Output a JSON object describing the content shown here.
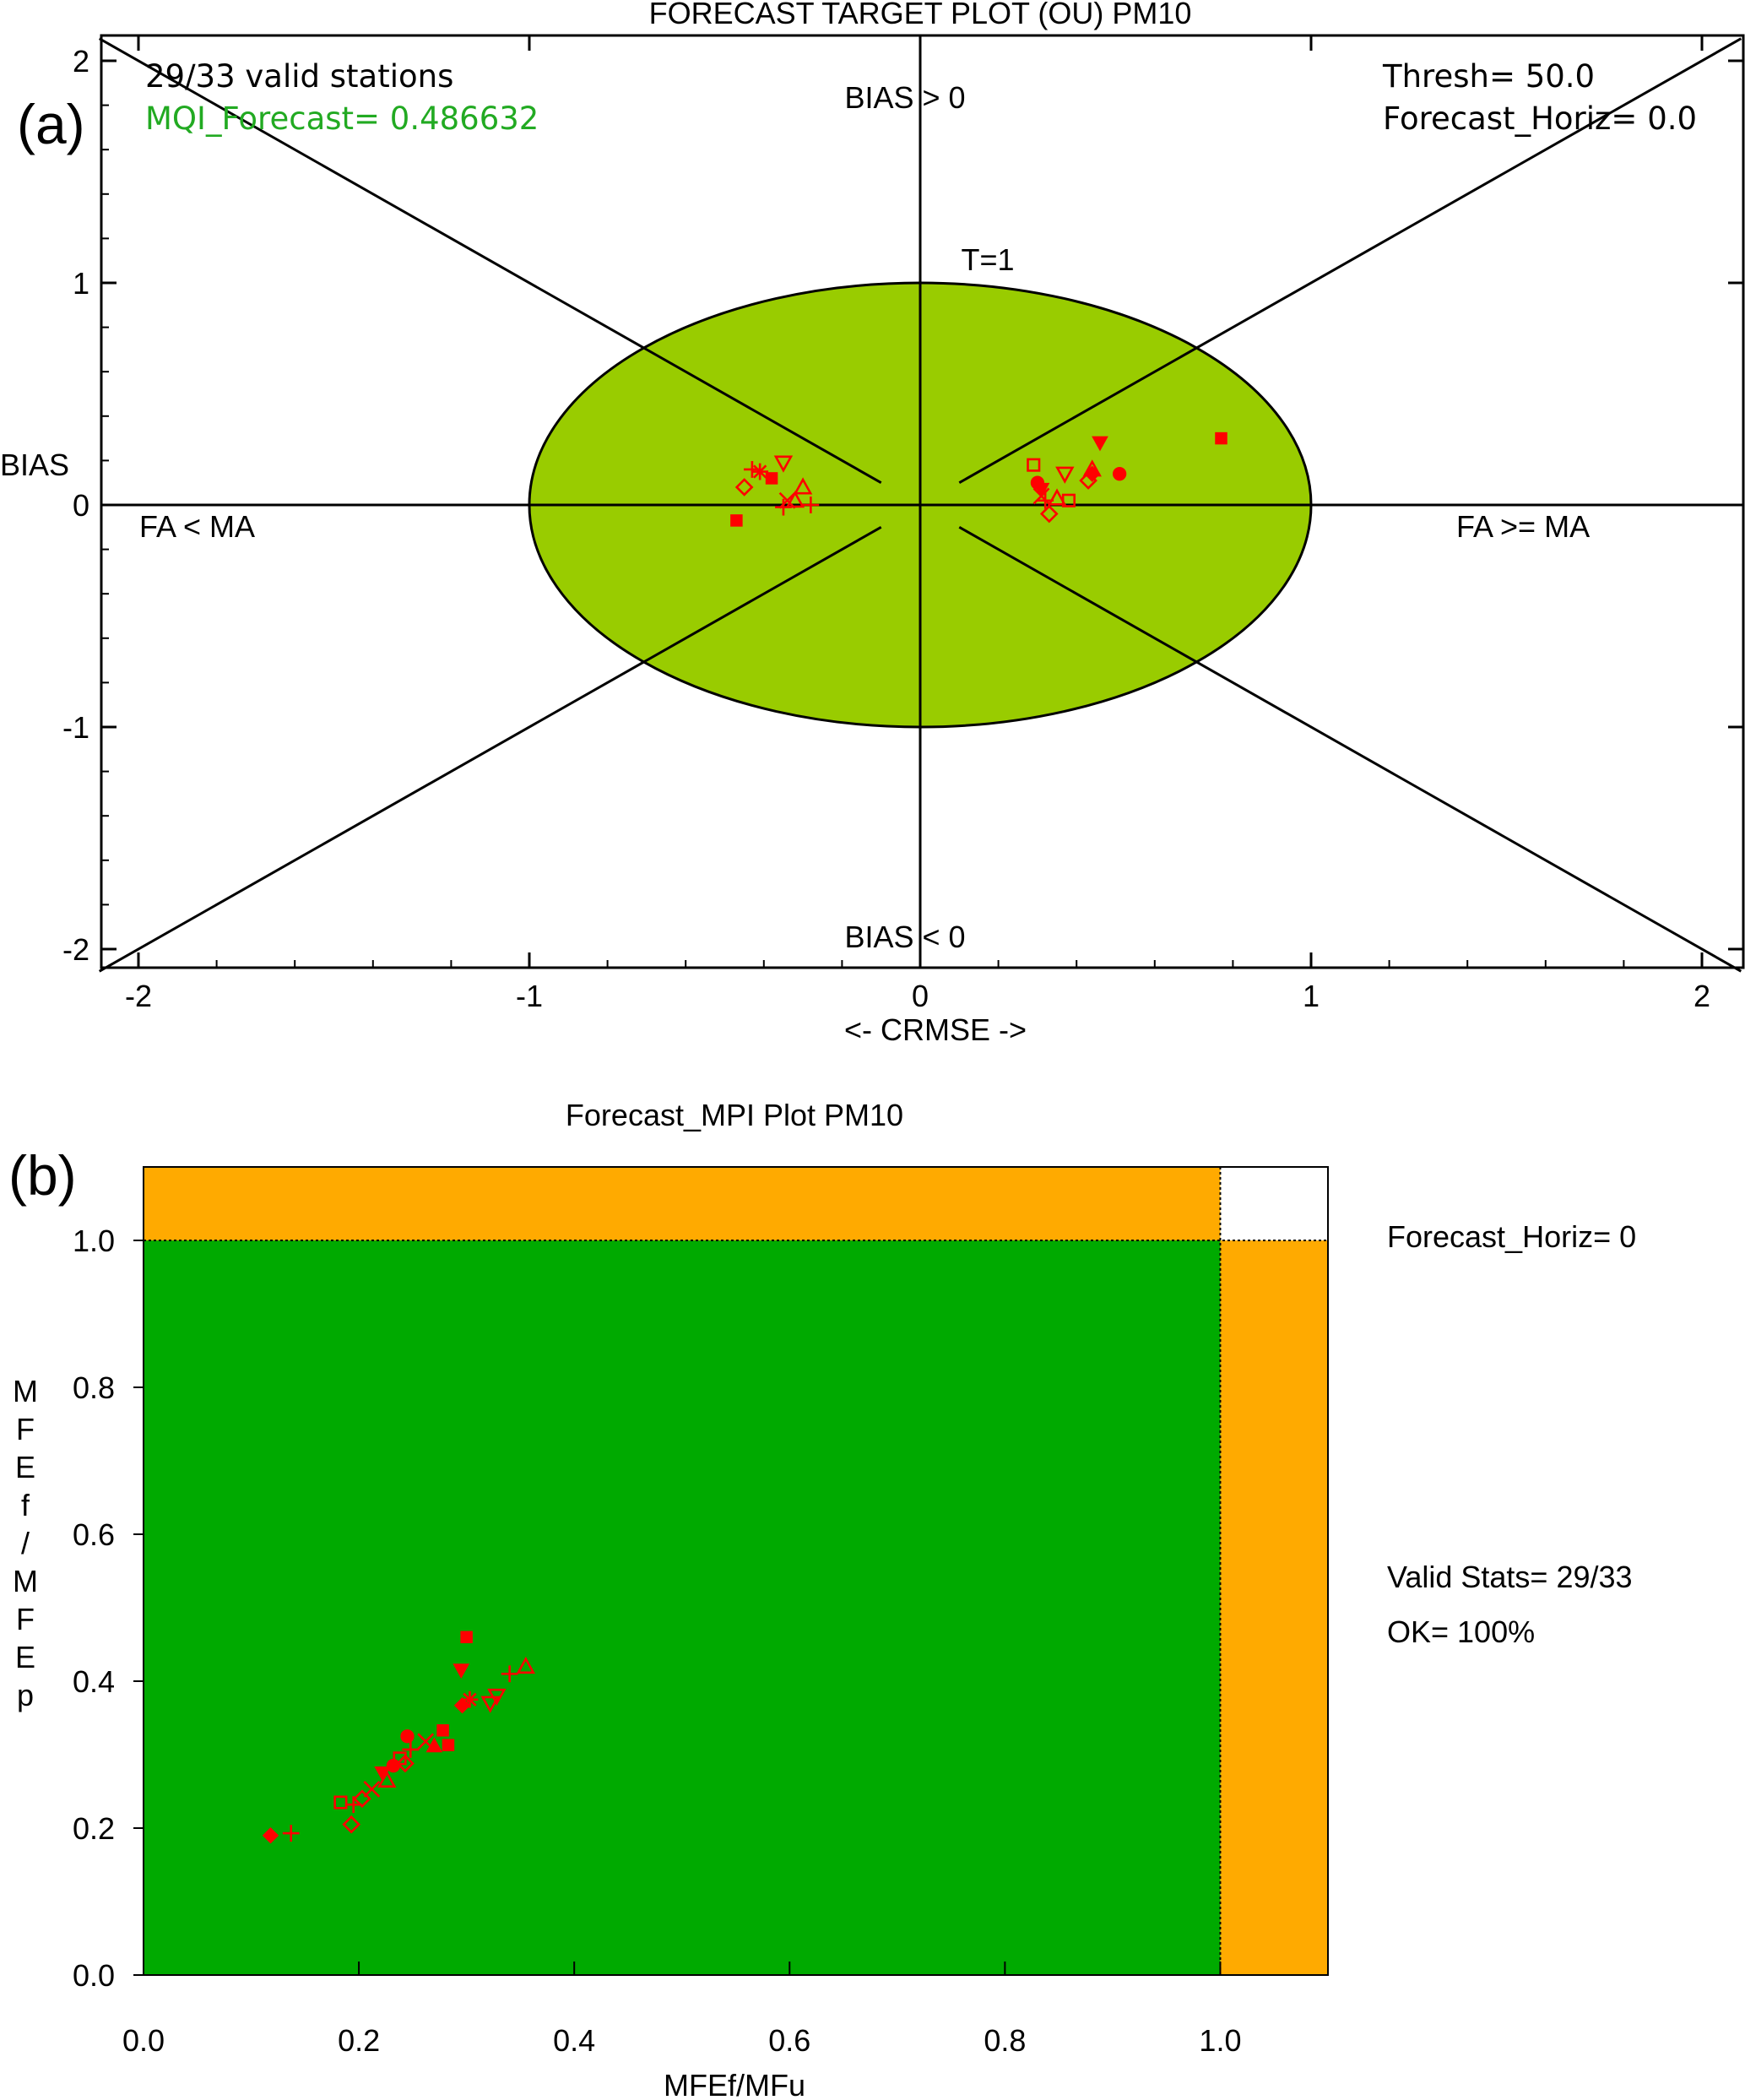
{
  "panel_labels": {
    "a": "(a)",
    "b": "(b)"
  },
  "colors": {
    "marker": "#ff0000",
    "ellipse_fill": "#99cc00",
    "mpi_green": "#00aa00",
    "mpi_orange": "#ffaa00",
    "mqi_text": "#22aa22",
    "axis": "#000000"
  },
  "chart_data": [
    {
      "type": "scatter",
      "title": "FORECAST TARGET PLOT (OU)    PM10",
      "xlabel": "<- CRMSE ->",
      "ylabel": "BIAS",
      "xlim": [
        -2.1,
        2.1
      ],
      "ylim": [
        -2.1,
        2.1
      ],
      "xticks": [
        -2,
        -1,
        0,
        1,
        2
      ],
      "yticks": [
        -2,
        -1,
        0,
        1,
        2
      ],
      "xtick_labels": [
        "-2",
        "-1",
        "0",
        "1",
        "2"
      ],
      "ytick_labels": [
        "-2",
        "-1",
        "0",
        "1",
        "2"
      ],
      "ellipse": {
        "rx": 1,
        "ry": 1
      },
      "annotations": {
        "stations": "29/33 valid stations",
        "mqi": "MQI_Forecast=  0.486632",
        "thresh": "Thresh=  50.0",
        "horiz": "Forecast_Horiz=  0.0",
        "bias_pos": "BIAS > 0",
        "bias_neg": "BIAS < 0",
        "t1": "T=1",
        "fa_lt": "FA < MA",
        "fa_ge": "FA >= MA"
      },
      "points": [
        {
          "x": 0.77,
          "y": 0.3,
          "m": "sq_f"
        },
        {
          "x": 0.46,
          "y": 0.28,
          "m": "tri_dn_f"
        },
        {
          "x": 0.51,
          "y": 0.14,
          "m": "circ_f"
        },
        {
          "x": 0.44,
          "y": 0.14,
          "m": "diamond_f"
        },
        {
          "x": 0.3,
          "y": 0.1,
          "m": "circ_f"
        },
        {
          "x": 0.29,
          "y": 0.18,
          "m": "sq_o"
        },
        {
          "x": 0.37,
          "y": 0.14,
          "m": "tri_dn_o"
        },
        {
          "x": 0.44,
          "y": 0.16,
          "m": "tri_o"
        },
        {
          "x": 0.43,
          "y": 0.11,
          "m": "diamond_o"
        },
        {
          "x": 0.31,
          "y": 0.04,
          "m": "x"
        },
        {
          "x": 0.32,
          "y": 0.02,
          "m": "plus"
        },
        {
          "x": 0.35,
          "y": 0.03,
          "m": "tri_o"
        },
        {
          "x": 0.38,
          "y": 0.02,
          "m": "sq_o"
        },
        {
          "x": 0.33,
          "y": -0.04,
          "m": "diamond_o"
        },
        {
          "x": 0.31,
          "y": 0.07,
          "m": "tri_dn_f"
        },
        {
          "x": -0.38,
          "y": 0.12,
          "m": "sq_f"
        },
        {
          "x": -0.43,
          "y": 0.16,
          "m": "plus"
        },
        {
          "x": -0.41,
          "y": 0.15,
          "m": "star"
        },
        {
          "x": -0.35,
          "y": 0.19,
          "m": "tri_dn_o"
        },
        {
          "x": -0.45,
          "y": 0.08,
          "m": "diamond_o"
        },
        {
          "x": -0.3,
          "y": 0.08,
          "m": "tri_o"
        },
        {
          "x": -0.34,
          "y": 0.02,
          "m": "x"
        },
        {
          "x": -0.35,
          "y": -0.01,
          "m": "plus"
        },
        {
          "x": -0.28,
          "y": 0.0,
          "m": "plus"
        },
        {
          "x": -0.32,
          "y": 0.02,
          "m": "tri_o"
        },
        {
          "x": -0.47,
          "y": -0.07,
          "m": "sq_f"
        }
      ]
    },
    {
      "type": "scatter",
      "title": "Forecast_MPI Plot  PM10",
      "xlabel": "MFEf/MFu",
      "ylabel": "M F E f / M F E p",
      "ylabel_chars": [
        "M",
        "F",
        "E",
        "f",
        "/",
        "M",
        "F",
        "E",
        "p"
      ],
      "xlim": [
        0.0,
        1.1
      ],
      "ylim": [
        0.0,
        1.1
      ],
      "xticks": [
        0.0,
        0.2,
        0.4,
        0.6,
        0.8,
        1.0
      ],
      "yticks": [
        0.0,
        0.2,
        0.4,
        0.6,
        0.8,
        1.0
      ],
      "xtick_labels": [
        "0.0",
        "0.2",
        "0.4",
        "0.6",
        "0.8",
        "1.0"
      ],
      "ytick_labels": [
        "0.0",
        "0.2",
        "0.4",
        "0.6",
        "0.8",
        "1.0"
      ],
      "annotations": {
        "horiz": "Forecast_Horiz= 0",
        "valid": "Valid Stats= 29/33",
        "ok": "OK= 100%"
      },
      "points": [
        {
          "x": 0.3,
          "y": 0.46,
          "m": "sq_f"
        },
        {
          "x": 0.295,
          "y": 0.415,
          "m": "tri_dn_f"
        },
        {
          "x": 0.355,
          "y": 0.42,
          "m": "tri_o"
        },
        {
          "x": 0.34,
          "y": 0.41,
          "m": "plus"
        },
        {
          "x": 0.328,
          "y": 0.38,
          "m": "tri_dn_o"
        },
        {
          "x": 0.322,
          "y": 0.37,
          "m": "tri_dn_o"
        },
        {
          "x": 0.303,
          "y": 0.375,
          "m": "star"
        },
        {
          "x": 0.296,
          "y": 0.367,
          "m": "diamond_f"
        },
        {
          "x": 0.278,
          "y": 0.333,
          "m": "sq_f"
        },
        {
          "x": 0.283,
          "y": 0.313,
          "m": "sq_f"
        },
        {
          "x": 0.245,
          "y": 0.325,
          "m": "circ_f"
        },
        {
          "x": 0.262,
          "y": 0.318,
          "m": "x"
        },
        {
          "x": 0.27,
          "y": 0.312,
          "m": "tri_f"
        },
        {
          "x": 0.248,
          "y": 0.307,
          "m": "plus"
        },
        {
          "x": 0.238,
          "y": 0.295,
          "m": "sq_o"
        },
        {
          "x": 0.243,
          "y": 0.288,
          "m": "diamond_o"
        },
        {
          "x": 0.232,
          "y": 0.285,
          "m": "circ_f"
        },
        {
          "x": 0.222,
          "y": 0.275,
          "m": "tri_dn_f"
        },
        {
          "x": 0.226,
          "y": 0.265,
          "m": "tri_o"
        },
        {
          "x": 0.212,
          "y": 0.253,
          "m": "x"
        },
        {
          "x": 0.203,
          "y": 0.24,
          "m": "diamond_o"
        },
        {
          "x": 0.195,
          "y": 0.232,
          "m": "plus"
        },
        {
          "x": 0.183,
          "y": 0.235,
          "m": "sq_o"
        },
        {
          "x": 0.193,
          "y": 0.205,
          "m": "diamond_o"
        },
        {
          "x": 0.137,
          "y": 0.193,
          "m": "plus"
        },
        {
          "x": 0.118,
          "y": 0.19,
          "m": "diamond_f"
        }
      ]
    }
  ]
}
